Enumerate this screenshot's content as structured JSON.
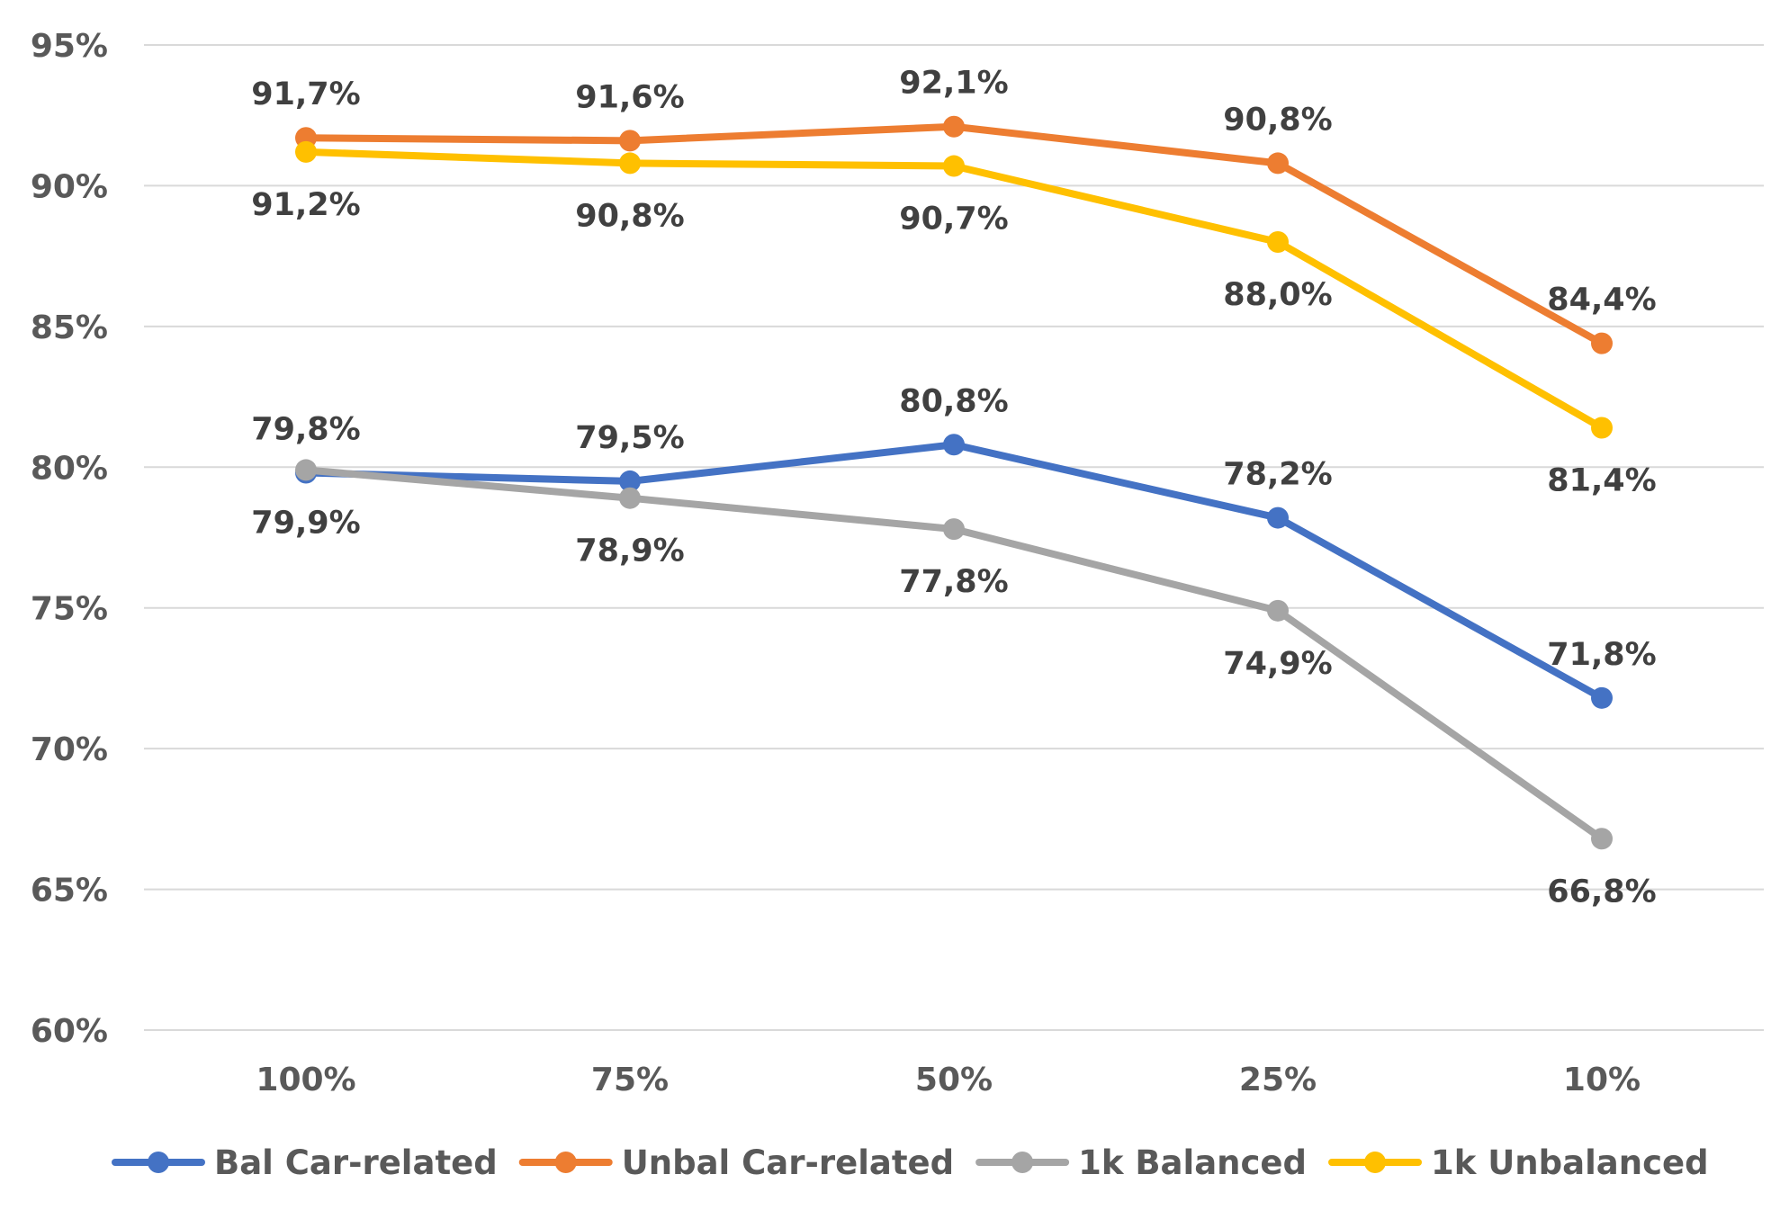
{
  "chart_data": {
    "type": "line",
    "categories": [
      "100%",
      "75%",
      "50%",
      "25%",
      "10%"
    ],
    "y_ticks": [
      "60%",
      "65%",
      "70%",
      "75%",
      "80%",
      "85%",
      "90%",
      "95%"
    ],
    "ylim": [
      60,
      95
    ],
    "grid": true,
    "legend_position": "bottom",
    "series": [
      {
        "name": "Bal Car-related",
        "color": "#4472c4",
        "values": [
          79.8,
          79.5,
          80.8,
          78.2,
          71.8
        ],
        "labels": [
          "79,8%",
          "79,5%",
          "80,8%",
          "78,2%",
          "71,8%"
        ],
        "label_side": [
          "above",
          "above",
          "above",
          "above",
          "above"
        ]
      },
      {
        "name": "Unbal Car-related",
        "color": "#ed7d31",
        "values": [
          91.7,
          91.6,
          92.1,
          90.8,
          84.4
        ],
        "labels": [
          "91,7%",
          "91,6%",
          "92,1%",
          "90,8%",
          "84,4%"
        ],
        "label_side": [
          "above",
          "above",
          "above",
          "above",
          "above"
        ]
      },
      {
        "name": "1k Balanced",
        "color": "#a5a5a5",
        "values": [
          79.9,
          78.9,
          77.8,
          74.9,
          66.8
        ],
        "labels": [
          "79,9%",
          "78,9%",
          "77,8%",
          "74,9%",
          "66,8%"
        ],
        "label_side": [
          "below",
          "below",
          "below",
          "below",
          "below"
        ]
      },
      {
        "name": "1k Unbalanced",
        "color": "#ffc000",
        "values": [
          91.2,
          90.8,
          90.7,
          88.0,
          81.4
        ],
        "labels": [
          "91,2%",
          "90,8%",
          "90,7%",
          "88,0%",
          "81,4%"
        ],
        "label_side": [
          "below",
          "below",
          "below",
          "below",
          "below"
        ]
      }
    ]
  }
}
